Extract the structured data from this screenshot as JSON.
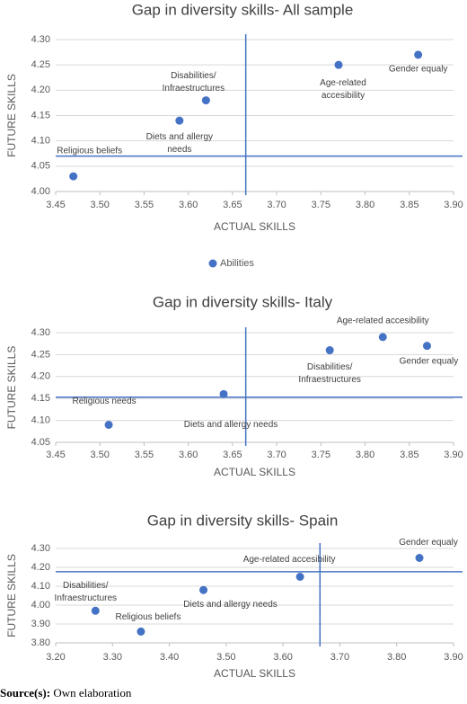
{
  "chart_data": [
    {
      "type": "scatter",
      "title": "Gap in diversity skills- All sample",
      "x_label": "ACTUAL SKILLS",
      "y_label": "FUTURE SKILLS",
      "xlim": [
        3.45,
        3.9
      ],
      "xticks": [
        3.45,
        {
          "value": 3.5,
          "label": "3.50"
        },
        3.55,
        {
          "value": 3.6,
          "label": "3.60"
        },
        3.65,
        {
          "value": 3.7,
          "label": "3.70"
        },
        3.75,
        {
          "value": 3.8,
          "label": "3.80"
        },
        3.85,
        {
          "value": 3.9,
          "label": "3.90"
        }
      ],
      "ylim": [
        4.0,
        4.3
      ],
      "yticks": [
        {
          "value": 4.0,
          "label": "4.00"
        },
        4.05,
        {
          "value": 4.1,
          "label": "4.10"
        },
        4.15,
        {
          "value": 4.2,
          "label": "4.20"
        },
        4.25,
        {
          "value": 4.3,
          "label": "4.30"
        }
      ],
      "grid": true,
      "legend": "bottom",
      "vline": 3.665,
      "hline": 4.07,
      "series": [
        {
          "name": "Abilities",
          "color": "#4472c4",
          "x": [
            3.47,
            3.59,
            3.62,
            3.77,
            3.86
          ],
          "values": [
            4.03,
            4.14,
            4.18,
            4.25,
            4.27
          ],
          "labels": [
            [
              "Religious beliefs"
            ],
            [
              "Diets and allergy",
              "needs"
            ],
            [
              "Disabilities/",
              "Infraestructures"
            ],
            [
              "Age-related",
              "accesibility"
            ],
            [
              "Gender equaly"
            ]
          ]
        }
      ]
    },
    {
      "type": "scatter",
      "title": "Gap in diversity skills- Italy",
      "x_label": "ACTUAL SKILLS",
      "y_label": "FUTURE SKILLS",
      "xlim": [
        3.45,
        3.9
      ],
      "xticks": [
        3.45,
        {
          "value": 3.5,
          "label": "3.50"
        },
        3.55,
        {
          "value": 3.6,
          "label": "3.60"
        },
        3.65,
        {
          "value": 3.7,
          "label": "3.70"
        },
        3.75,
        {
          "value": 3.8,
          "label": "3.80"
        },
        3.85,
        {
          "value": 3.9,
          "label": "3.90"
        }
      ],
      "ylim": [
        4.05,
        4.3
      ],
      "yticks": [
        4.05,
        {
          "value": 4.1,
          "label": "4.10"
        },
        4.15,
        {
          "value": 4.2,
          "label": "4.20"
        },
        4.25,
        {
          "value": 4.3,
          "label": "4.30"
        }
      ],
      "grid": true,
      "vline": 3.665,
      "hline": 4.153,
      "series": [
        {
          "color": "#4472c4",
          "x": [
            3.51,
            3.64,
            3.76,
            3.82,
            3.87
          ],
          "values": [
            4.09,
            4.16,
            4.26,
            4.29,
            4.27
          ],
          "labels": [
            [
              "Religious needs"
            ],
            [
              "Diets and allergy needs"
            ],
            [
              "Disabilities/",
              "Infraestructures"
            ],
            [
              "Age-related accesibility"
            ],
            [
              "Gender equaly"
            ]
          ]
        }
      ]
    },
    {
      "type": "scatter",
      "title": "Gap in diversity skills- Spain",
      "x_label": "ACTUAL SKILLS",
      "y_label": "FUTURE SKILLS",
      "xlim": [
        3.2,
        3.9
      ],
      "xticks": [
        {
          "value": 3.2,
          "label": "3.20"
        },
        {
          "value": 3.3,
          "label": "3.30"
        },
        {
          "value": 3.4,
          "label": "3.40"
        },
        {
          "value": 3.5,
          "label": "3.50"
        },
        {
          "value": 3.6,
          "label": "3.60"
        },
        {
          "value": 3.7,
          "label": "3.70"
        },
        {
          "value": 3.8,
          "label": "3.80"
        },
        {
          "value": 3.9,
          "label": "3.90"
        }
      ],
      "ylim": [
        3.8,
        4.3
      ],
      "yticks": [
        {
          "value": 3.8,
          "label": "3.80"
        },
        {
          "value": 3.9,
          "label": "3.90"
        },
        {
          "value": 4.0,
          "label": "4.00"
        },
        {
          "value": 4.1,
          "label": "4.10"
        },
        {
          "value": 4.2,
          "label": "4.20"
        },
        {
          "value": 4.3,
          "label": "4.30"
        }
      ],
      "grid": true,
      "vline": 3.665,
      "hline": 4.177,
      "series": [
        {
          "color": "#4472c4",
          "x": [
            3.27,
            3.35,
            3.46,
            3.63,
            3.84
          ],
          "values": [
            3.97,
            3.86,
            4.08,
            4.15,
            4.25
          ],
          "labels": [
            [
              "Disabilities/",
              "Infraestructures"
            ],
            [
              "Religious beliefs"
            ],
            [
              "Diets and allergy needs"
            ],
            [
              "Age-related accesibility"
            ],
            [
              "Gender equaly"
            ]
          ]
        }
      ]
    }
  ],
  "footer": {
    "source_label": "Source(s):",
    "source_text": "Own elaboration"
  }
}
